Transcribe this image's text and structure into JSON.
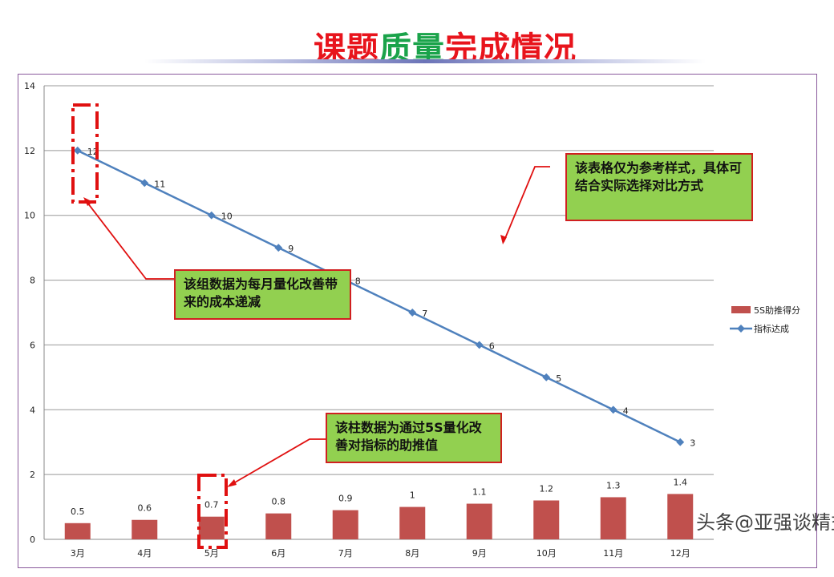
{
  "title": {
    "part1": "课题",
    "part2": "质量",
    "part3": "完成情况"
  },
  "chart_data": {
    "type": "bar+line",
    "categories": [
      "3月",
      "4月",
      "5月",
      "6月",
      "7月",
      "8月",
      "9月",
      "10月",
      "11月",
      "12月"
    ],
    "series": [
      {
        "name": "5S助推得分",
        "type": "bar",
        "color": "#c0504d",
        "values": [
          0.5,
          0.6,
          0.7,
          0.8,
          0.9,
          1,
          1.1,
          1.2,
          1.3,
          1.4
        ]
      },
      {
        "name": "指标达成",
        "type": "line",
        "color": "#4f81bd",
        "values": [
          12,
          11,
          10,
          9,
          8,
          7,
          6,
          5,
          4,
          3
        ]
      }
    ],
    "ylim": [
      0,
      14
    ],
    "yticks": [
      0,
      2,
      4,
      6,
      8,
      10,
      12,
      14
    ],
    "grid": true,
    "legend": "right"
  },
  "notes": {
    "note1": "该组数据为每月量化改善带来的成本递减",
    "note2": "该表格仅为参考样式，具体可结合实际选择对比方式",
    "note3": "该柱数据为通过5S量化改善对指标的助推值"
  },
  "watermark": "头条@亚强谈精益"
}
